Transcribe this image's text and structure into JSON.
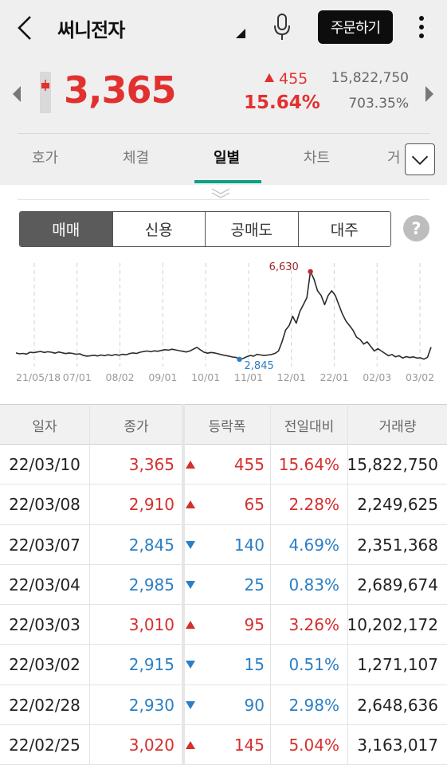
{
  "header": {
    "stock_name": "써니전자",
    "order_button": "주문하기",
    "price": "3,365",
    "change_amount": "455",
    "change_percent": "15.64%",
    "volume": "15,822,750",
    "volume_ratio": "703.35%",
    "colors": {
      "up": "#e1312f",
      "down": "#2c7fc5",
      "accent": "#0e9f86"
    }
  },
  "tabs": [
    {
      "label": "호가"
    },
    {
      "label": "체결"
    },
    {
      "label": "일별",
      "active": true
    },
    {
      "label": "차트"
    },
    {
      "label": "거"
    }
  ],
  "segments": [
    {
      "label": "매매",
      "active": true
    },
    {
      "label": "신용"
    },
    {
      "label": "공매도"
    },
    {
      "label": "대주"
    }
  ],
  "help_label": "?",
  "chart_data": {
    "type": "line",
    "x_labels": [
      "21/05/18",
      "07/01",
      "08/02",
      "09/01",
      "10/01",
      "11/01",
      "12/01",
      "22/01",
      "02/03",
      "03/02"
    ],
    "annotations": {
      "max": "6,630",
      "min": "2,845"
    },
    "values": [
      3120,
      3080,
      3100,
      3070,
      3150,
      3130,
      3160,
      3180,
      3140,
      3170,
      3150,
      3110,
      3160,
      3130,
      3090,
      3120,
      3100,
      3060,
      3080,
      3010,
      2980,
      3000,
      3020,
      2990,
      3030,
      3000,
      3040,
      3010,
      3050,
      3020,
      3060,
      3040,
      3090,
      3120,
      3100,
      3150,
      3180,
      3200,
      3170,
      3210,
      3190,
      3230,
      3260,
      3240,
      3280,
      3250,
      3220,
      3190,
      3160,
      3200,
      3280,
      3360,
      3250,
      3150,
      3110,
      3140,
      3120,
      3080,
      3040,
      3010,
      2980,
      2945,
      2930,
      2845,
      2880,
      2950,
      3010,
      2980,
      3060,
      3030,
      3010,
      3030,
      3050,
      3100,
      3200,
      3600,
      4100,
      4300,
      4700,
      4400,
      4900,
      5200,
      5500,
      6630,
      6300,
      5800,
      5600,
      5200,
      5600,
      5800,
      5600,
      5200,
      4800,
      4500,
      4300,
      4100,
      3800,
      3700,
      3500,
      3600,
      3400,
      3200,
      3300,
      3200,
      3100,
      3000,
      3050,
      2950,
      3000,
      2900,
      2960,
      2920,
      2950,
      2900,
      2910,
      2850,
      2930,
      3365
    ],
    "ylim": [
      2600,
      7000
    ],
    "grid": "vertical-dashed"
  },
  "table": {
    "headers": [
      "일자",
      "종가",
      "등락폭",
      "전일대비",
      "거래량"
    ],
    "rows": [
      {
        "date": "22/03/10",
        "close": "3,365",
        "dir": "up",
        "change": "455",
        "pct": "15.64%",
        "volume": "15,822,750"
      },
      {
        "date": "22/03/08",
        "close": "2,910",
        "dir": "up",
        "change": "65",
        "pct": "2.28%",
        "volume": "2,249,625"
      },
      {
        "date": "22/03/07",
        "close": "2,845",
        "dir": "down",
        "change": "140",
        "pct": "4.69%",
        "volume": "2,351,368"
      },
      {
        "date": "22/03/04",
        "close": "2,985",
        "dir": "down",
        "change": "25",
        "pct": "0.83%",
        "volume": "2,689,674"
      },
      {
        "date": "22/03/03",
        "close": "3,010",
        "dir": "up",
        "change": "95",
        "pct": "3.26%",
        "volume": "10,202,172"
      },
      {
        "date": "22/03/02",
        "close": "2,915",
        "dir": "down",
        "change": "15",
        "pct": "0.51%",
        "volume": "1,271,107"
      },
      {
        "date": "22/02/28",
        "close": "2,930",
        "dir": "down",
        "change": "90",
        "pct": "2.98%",
        "volume": "2,648,636"
      },
      {
        "date": "22/02/25",
        "close": "3,020",
        "dir": "up",
        "change": "145",
        "pct": "5.04%",
        "volume": "3,163,017"
      }
    ]
  }
}
